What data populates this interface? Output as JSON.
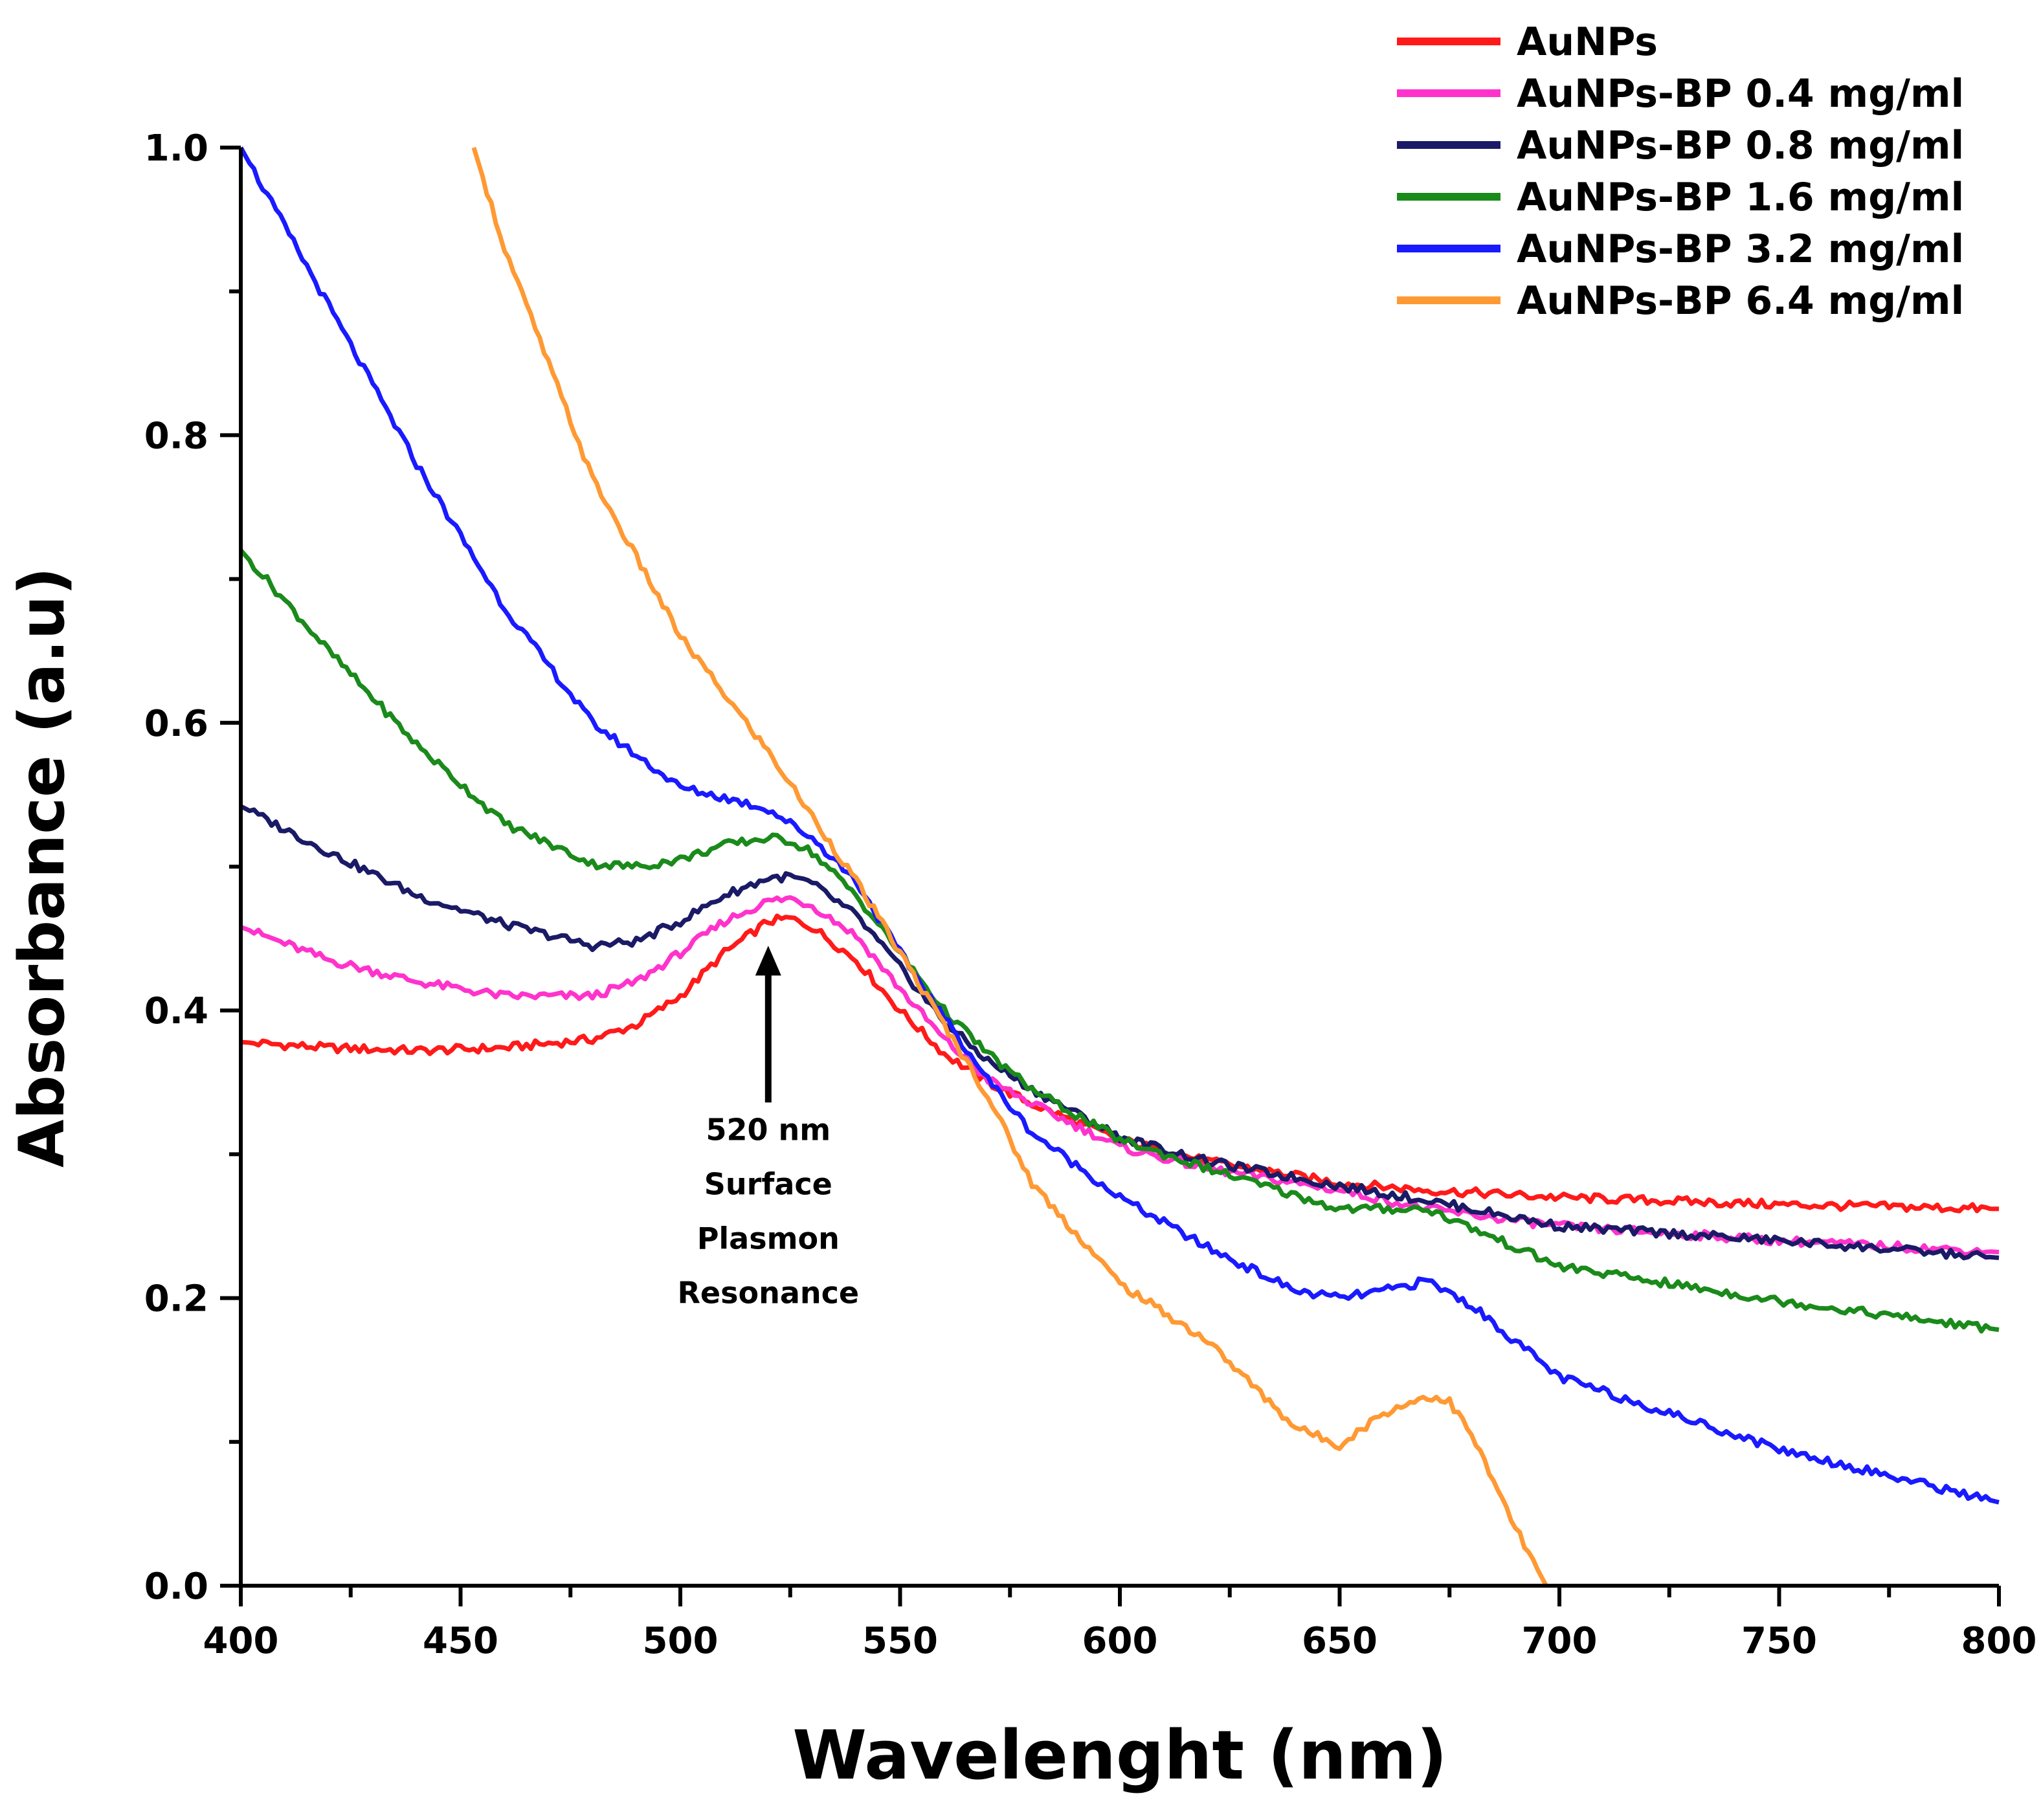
{
  "chart_data": {
    "type": "line",
    "title": "",
    "xlabel": "Wavelenght (nm)",
    "ylabel": "Absorbance (a.u)",
    "xlim": [
      400,
      800
    ],
    "ylim": [
      0.0,
      1.0
    ],
    "x_ticks": [
      400,
      450,
      500,
      550,
      600,
      650,
      700,
      750,
      800
    ],
    "x_tick_labels": [
      "400",
      "450",
      "500",
      "550",
      "600",
      "650",
      "700",
      "750",
      "800"
    ],
    "y_ticks": [
      0.0,
      0.2,
      0.4,
      0.6,
      0.8,
      1.0
    ],
    "y_tick_labels": [
      "0.0",
      "0.2",
      "0.4",
      "0.6",
      "0.8",
      "1.0"
    ],
    "grid": false,
    "legend_position": "top-right",
    "series": [
      {
        "name": "AuNPs",
        "color": "#ff1a1a",
        "x": [
          400,
          420,
          440,
          460,
          480,
          490,
          500,
          510,
          520,
          525,
          530,
          540,
          550,
          560,
          570,
          580,
          600,
          620,
          650,
          670,
          700,
          750,
          800
        ],
        "y": [
          0.378,
          0.374,
          0.372,
          0.374,
          0.38,
          0.39,
          0.41,
          0.44,
          0.462,
          0.464,
          0.458,
          0.435,
          0.4,
          0.37,
          0.35,
          0.335,
          0.31,
          0.295,
          0.28,
          0.275,
          0.27,
          0.265,
          0.262
        ]
      },
      {
        "name": "AuNPs-BP 0.4 mg/ml",
        "color": "#ff33cc",
        "x": [
          400,
          420,
          440,
          460,
          480,
          490,
          500,
          510,
          520,
          525,
          530,
          540,
          550,
          560,
          570,
          580,
          600,
          620,
          650,
          670,
          700,
          750,
          800
        ],
        "y": [
          0.458,
          0.435,
          0.42,
          0.41,
          0.41,
          0.42,
          0.44,
          0.462,
          0.476,
          0.478,
          0.473,
          0.452,
          0.415,
          0.38,
          0.352,
          0.335,
          0.305,
          0.29,
          0.275,
          0.262,
          0.25,
          0.24,
          0.232
        ]
      },
      {
        "name": "AuNPs-BP 0.8 mg/ml",
        "color": "#1a1a66",
        "x": [
          400,
          420,
          440,
          460,
          480,
          490,
          500,
          510,
          520,
          525,
          530,
          540,
          550,
          560,
          570,
          580,
          600,
          620,
          650,
          670,
          700,
          750,
          800
        ],
        "y": [
          0.542,
          0.51,
          0.48,
          0.46,
          0.445,
          0.448,
          0.462,
          0.48,
          0.492,
          0.493,
          0.488,
          0.466,
          0.43,
          0.392,
          0.365,
          0.345,
          0.312,
          0.295,
          0.278,
          0.268,
          0.25,
          0.24,
          0.228
        ]
      },
      {
        "name": "AuNPs-BP 1.6 mg/ml",
        "color": "#1a8a1a",
        "x": [
          400,
          420,
          440,
          460,
          480,
          490,
          500,
          510,
          520,
          525,
          530,
          540,
          550,
          560,
          570,
          580,
          600,
          620,
          650,
          670,
          700,
          750,
          800
        ],
        "y": [
          0.72,
          0.65,
          0.585,
          0.53,
          0.502,
          0.5,
          0.505,
          0.515,
          0.52,
          0.518,
          0.51,
          0.48,
          0.44,
          0.4,
          0.37,
          0.345,
          0.31,
          0.29,
          0.262,
          0.262,
          0.222,
          0.198,
          0.178
        ]
      },
      {
        "name": "AuNPs-BP 3.2 mg/ml",
        "color": "#1a1aff",
        "x": [
          400,
          420,
          440,
          460,
          480,
          500,
          510,
          520,
          530,
          540,
          550,
          560,
          570,
          580,
          600,
          620,
          640,
          650,
          660,
          670,
          680,
          700,
          750,
          800
        ],
        "y": [
          1.0,
          0.89,
          0.78,
          0.68,
          0.6,
          0.555,
          0.548,
          0.54,
          0.52,
          0.49,
          0.44,
          0.395,
          0.352,
          0.315,
          0.27,
          0.235,
          0.205,
          0.2,
          0.205,
          0.212,
          0.195,
          0.145,
          0.095,
          0.058
        ]
      },
      {
        "name": "AuNPs-BP 6.4 mg/ml",
        "color": "#ff9933",
        "x": [
          453,
          460,
          480,
          500,
          520,
          530,
          540,
          550,
          560,
          570,
          580,
          600,
          620,
          640,
          650,
          660,
          670,
          675,
          680,
          690,
          697
        ],
        "y": [
          1.0,
          0.93,
          0.77,
          0.66,
          0.58,
          0.535,
          0.49,
          0.44,
          0.39,
          0.34,
          0.28,
          0.21,
          0.17,
          0.11,
          0.098,
          0.12,
          0.132,
          0.128,
          0.105,
          0.04,
          0.0
        ]
      }
    ],
    "annotations": [
      {
        "lines": [
          "520 nm",
          "Surface",
          "Plasmon",
          "Resonance"
        ],
        "x": 520,
        "y": 0.3,
        "arrow_to": [
          520,
          0.445
        ]
      }
    ]
  }
}
